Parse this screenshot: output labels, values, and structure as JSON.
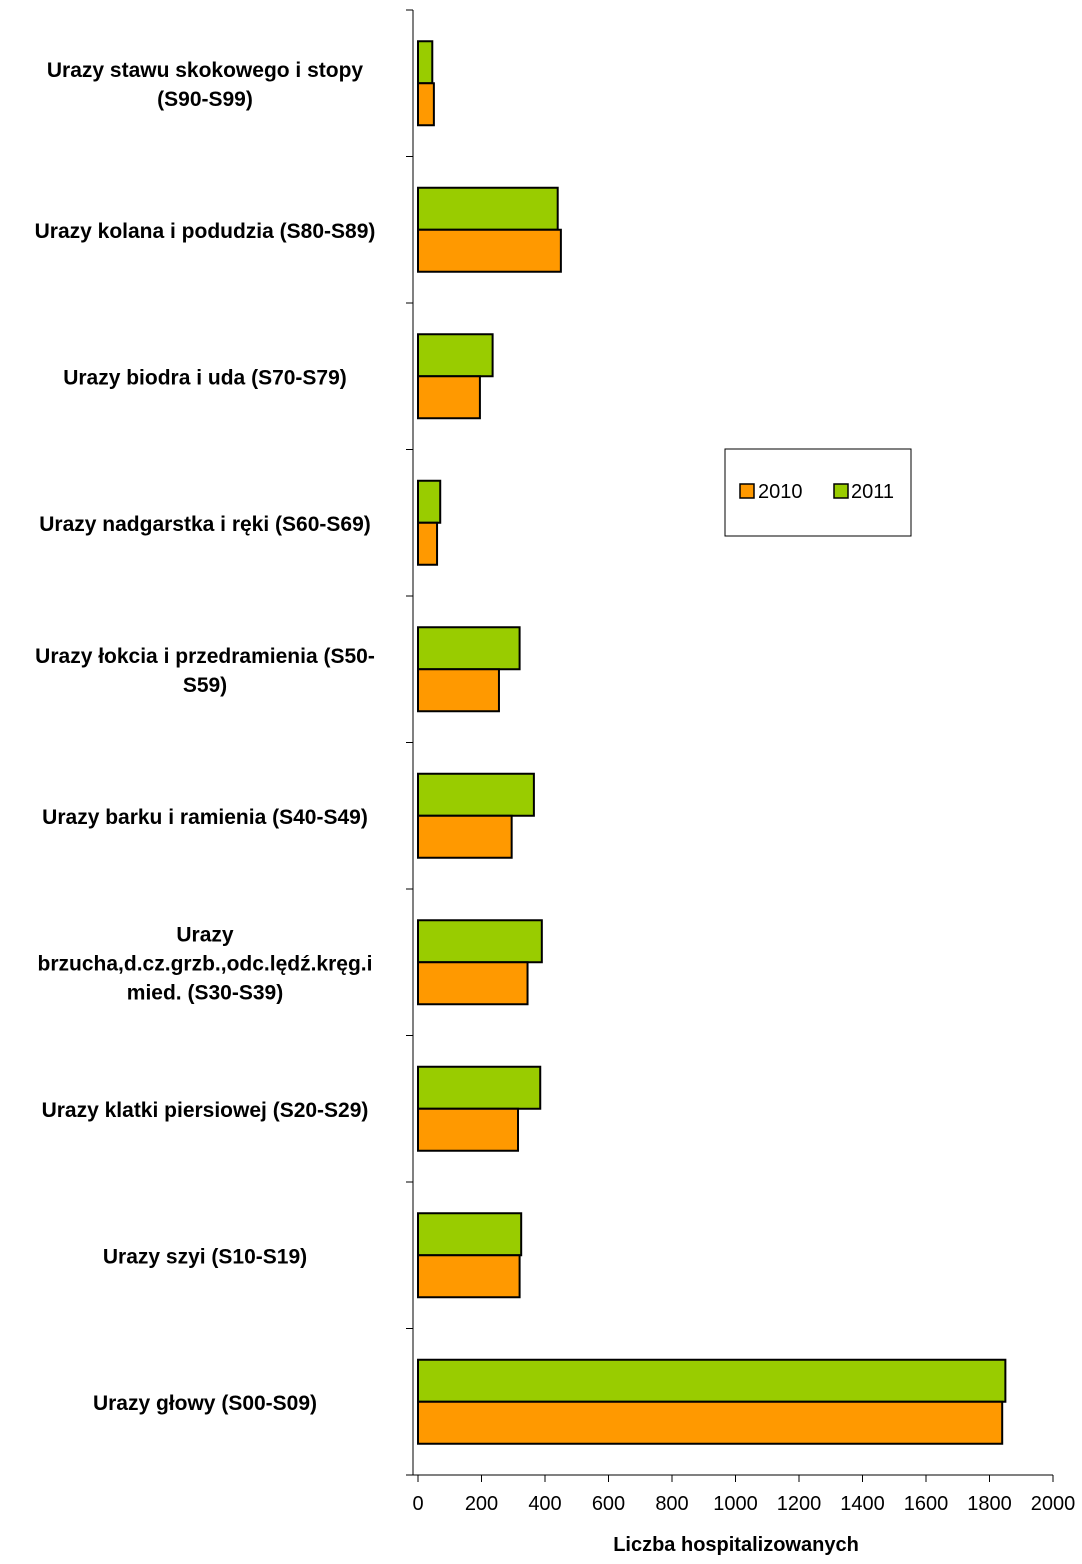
{
  "chart_data": {
    "type": "bar",
    "orientation": "horizontal",
    "categories": [
      "Urazy głowy (S00-S09)",
      "Urazy szyi (S10-S19)",
      "Urazy klatki piersiowej (S20-S29)",
      "Urazy brzucha,d.cz.grzb.,odc.lędź.kręg.i mied. (S30-S39)",
      "Urazy barku i ramienia (S40-S49)",
      "Urazy łokcia i przedramienia (S50-S59)",
      "Urazy nadgarstka i ręki (S60-S69)",
      "Urazy biodra i uda (S70-S79)",
      "Urazy kolana i podudzia (S80-S89)",
      "Urazy stawu skokowego i stopy (S90-S99)"
    ],
    "category_label_lines": [
      [
        "Urazy głowy (S00-S09)"
      ],
      [
        "Urazy szyi (S10-S19)"
      ],
      [
        "Urazy klatki piersiowej (S20-S29)"
      ],
      [
        "Urazy",
        "brzucha,d.cz.grzb.,odc.lędź.kręg.i",
        "mied. (S30-S39)"
      ],
      [
        "Urazy barku i ramienia (S40-S49)"
      ],
      [
        "Urazy łokcia i przedramienia (S50-",
        "S59)"
      ],
      [
        "Urazy nadgarstka i ręki (S60-S69)"
      ],
      [
        "Urazy biodra i uda (S70-S79)"
      ],
      [
        "Urazy kolana i podudzia (S80-S89)"
      ],
      [
        "Urazy stawu skokowego i stopy",
        "(S90-S99)"
      ]
    ],
    "series": [
      {
        "name": "2010",
        "color": "#FF9900",
        "values": [
          1840,
          320,
          315,
          345,
          295,
          255,
          60,
          195,
          450,
          50
        ]
      },
      {
        "name": "2011",
        "color": "#99CC00",
        "values": [
          1850,
          325,
          385,
          390,
          365,
          320,
          70,
          235,
          440,
          45
        ]
      }
    ],
    "xlabel": "Liczba hospitalizowanych",
    "ylabel": "",
    "xlim": [
      0,
      2000
    ],
    "xticks": [
      0,
      200,
      400,
      600,
      800,
      1000,
      1200,
      1400,
      1600,
      1800,
      2000
    ],
    "legend": {
      "position": "right",
      "entries": [
        "2010",
        "2011"
      ]
    },
    "grid": false
  }
}
